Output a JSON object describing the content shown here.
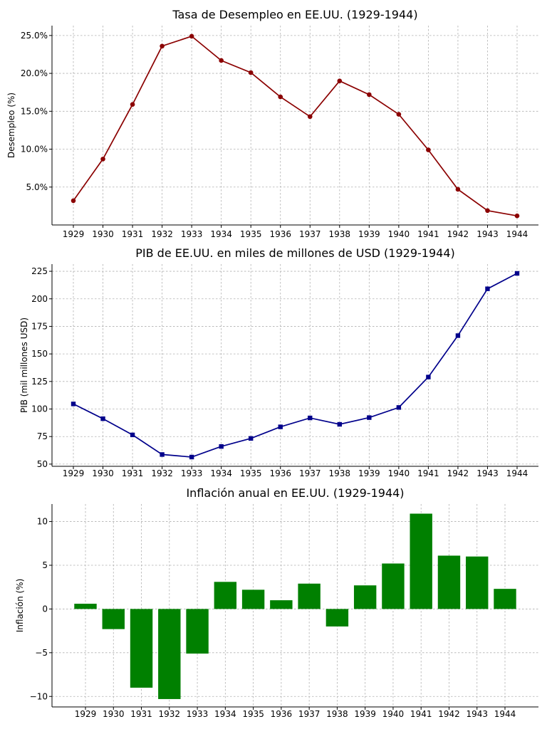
{
  "chart_data": [
    {
      "type": "line",
      "title": "Tasa de Desempleo en EE.UU. (1929-1944)",
      "xlabel": "",
      "ylabel": "Desempleo (%)",
      "x": [
        "1929",
        "1930",
        "1931",
        "1932",
        "1933",
        "1934",
        "1935",
        "1936",
        "1937",
        "1938",
        "1939",
        "1940",
        "1941",
        "1942",
        "1943",
        "1944"
      ],
      "series": [
        {
          "values": [
            3.2,
            8.7,
            15.9,
            23.6,
            24.9,
            21.7,
            20.1,
            16.9,
            14.3,
            19.0,
            17.2,
            14.6,
            9.9,
            4.7,
            1.9,
            1.2
          ],
          "color": "#8b0000",
          "marker": "circle"
        }
      ],
      "yticks": [
        5,
        10,
        15,
        20,
        25
      ],
      "ytick_labels": [
        "5.0%",
        "10.0%",
        "15.0%",
        "20.0%",
        "25.0%"
      ],
      "ylim": [
        0.0,
        26.3
      ],
      "grid": true
    },
    {
      "type": "line",
      "title": "PIB de EE.UU. en miles de millones de USD (1929-1944)",
      "xlabel": "",
      "ylabel": "PIB (mil millones USD)",
      "x": [
        "1929",
        "1930",
        "1931",
        "1932",
        "1933",
        "1934",
        "1935",
        "1936",
        "1937",
        "1938",
        "1939",
        "1940",
        "1941",
        "1942",
        "1943",
        "1944"
      ],
      "series": [
        {
          "values": [
            104.6,
            91.2,
            76.5,
            58.7,
            56.4,
            66.0,
            73.3,
            83.8,
            91.9,
            86.1,
            92.2,
            101.4,
            129.0,
            166.6,
            209.1,
            223.1
          ],
          "color": "#00008b",
          "marker": "square"
        }
      ],
      "yticks": [
        50,
        75,
        100,
        125,
        150,
        175,
        200,
        225
      ],
      "ytick_labels": [
        "50",
        "75",
        "100",
        "125",
        "150",
        "175",
        "200",
        "225"
      ],
      "ylim": [
        48.0,
        231.5
      ],
      "grid": true
    },
    {
      "type": "bar",
      "title": "Inflación anual en EE.UU. (1929-1944)",
      "xlabel": "",
      "ylabel": "Inflación (%)",
      "categories": [
        "1929",
        "1930",
        "1931",
        "1932",
        "1933",
        "1934",
        "1935",
        "1936",
        "1937",
        "1938",
        "1939",
        "1940",
        "1941",
        "1942",
        "1943",
        "1944"
      ],
      "values": [
        0.6,
        -2.3,
        -9.0,
        -10.3,
        -5.1,
        3.1,
        2.2,
        1.0,
        2.9,
        -2.0,
        2.7,
        5.2,
        10.9,
        6.1,
        6.0,
        2.3
      ],
      "color": "#008000",
      "yticks": [
        -10,
        -5,
        0,
        5,
        10
      ],
      "ytick_labels": [
        "−10",
        "−5",
        "0",
        "5",
        "10"
      ],
      "ylim": [
        -11.2,
        12.0
      ],
      "grid": true
    }
  ]
}
